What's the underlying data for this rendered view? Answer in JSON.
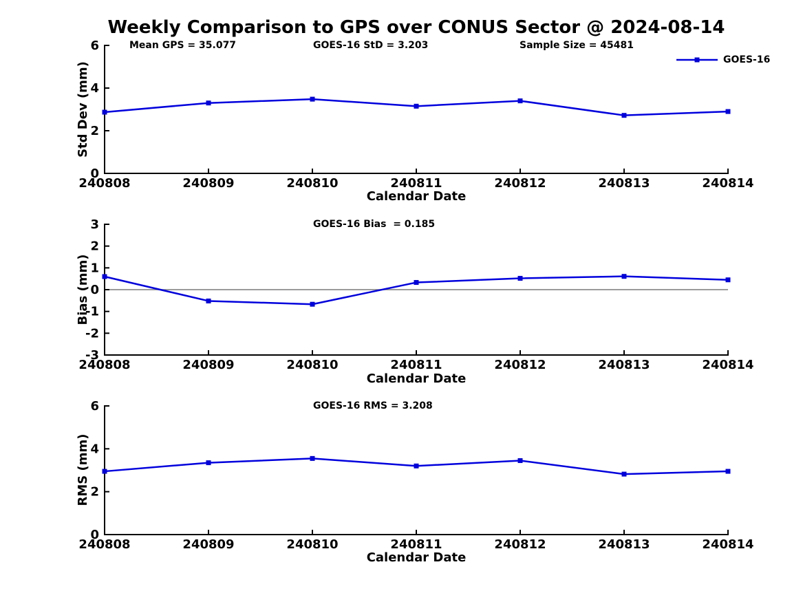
{
  "title": "Weekly Comparison to GPS over CONUS Sector @ 2024-08-14",
  "legend": {
    "label": "GOES-16",
    "marker": "square"
  },
  "colors": {
    "line": "#0000DD",
    "axis": "#000000",
    "zero_line": "#7a7a7a",
    "text": "#000000",
    "background": "#FFFFFF"
  },
  "chart_data": [
    {
      "type": "line",
      "id": "std-dev",
      "annotations": [
        "Mean GPS = 35.077",
        "GOES-16 StD = 3.203",
        "Sample Size = 45481"
      ],
      "categories": [
        "240808",
        "240809",
        "240810",
        "240811",
        "240812",
        "240813",
        "240814"
      ],
      "series": [
        {
          "name": "GOES-16",
          "color": "#0000DD",
          "marker": "square",
          "values": [
            2.87,
            3.3,
            3.48,
            3.15,
            3.4,
            2.72,
            2.9
          ]
        }
      ],
      "xlabel": "Calendar Date",
      "ylabel": "Std Dev (mm)",
      "ylim": [
        0,
        6
      ],
      "yticks": [
        0,
        2,
        4,
        6
      ],
      "grid": false,
      "zero_line": false,
      "legend_position": "top-right-outside"
    },
    {
      "type": "line",
      "id": "bias",
      "annotations": [
        "GOES-16 Bias  = 0.185"
      ],
      "categories": [
        "240808",
        "240809",
        "240810",
        "240811",
        "240812",
        "240813",
        "240814"
      ],
      "series": [
        {
          "name": "GOES-16",
          "color": "#0000DD",
          "marker": "square",
          "values": [
            0.6,
            -0.52,
            -0.67,
            0.33,
            0.52,
            0.61,
            0.45
          ]
        }
      ],
      "xlabel": "Calendar Date",
      "ylabel": "Bias (mm)",
      "ylim": [
        -3,
        3
      ],
      "yticks": [
        -3,
        -2,
        -1,
        0,
        1,
        2,
        3
      ],
      "grid": false,
      "zero_line": true,
      "legend_position": "none"
    },
    {
      "type": "line",
      "id": "rms",
      "annotations": [
        "GOES-16 RMS = 3.208"
      ],
      "categories": [
        "240808",
        "240809",
        "240810",
        "240811",
        "240812",
        "240813",
        "240814"
      ],
      "series": [
        {
          "name": "GOES-16",
          "color": "#0000DD",
          "marker": "square",
          "values": [
            2.95,
            3.35,
            3.55,
            3.2,
            3.45,
            2.82,
            2.95
          ]
        }
      ],
      "xlabel": "Calendar Date",
      "ylabel": "RMS (mm)",
      "ylim": [
        0,
        6
      ],
      "yticks": [
        0,
        2,
        4,
        6
      ],
      "grid": false,
      "zero_line": false,
      "legend_position": "none"
    }
  ]
}
